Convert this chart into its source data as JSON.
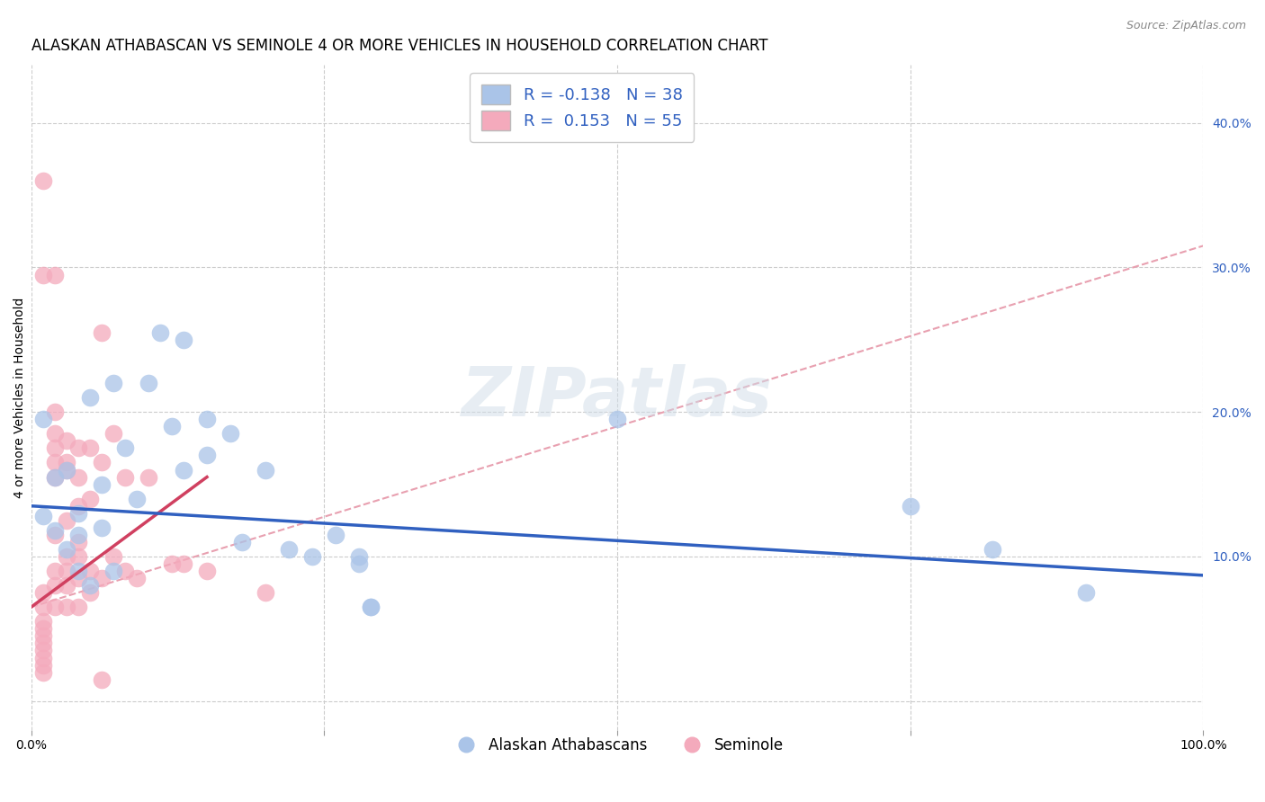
{
  "title": "ALASKAN ATHABASCAN VS SEMINOLE 4 OR MORE VEHICLES IN HOUSEHOLD CORRELATION CHART",
  "source": "Source: ZipAtlas.com",
  "ylabel": "4 or more Vehicles in Household",
  "right_ytick_labels": [
    "",
    "10.0%",
    "20.0%",
    "30.0%",
    "40.0%"
  ],
  "right_yticks": [
    0.0,
    0.1,
    0.2,
    0.3,
    0.4
  ],
  "xlim": [
    0.0,
    1.0
  ],
  "ylim": [
    -0.02,
    0.44
  ],
  "legend_r_blue": "R = -0.138",
  "legend_n_blue": "N = 38",
  "legend_r_pink": "R =  0.153",
  "legend_n_pink": "N = 55",
  "blue_scatter": [
    [
      0.01,
      0.195
    ],
    [
      0.01,
      0.128
    ],
    [
      0.02,
      0.118
    ],
    [
      0.02,
      0.155
    ],
    [
      0.03,
      0.16
    ],
    [
      0.03,
      0.105
    ],
    [
      0.04,
      0.115
    ],
    [
      0.04,
      0.09
    ],
    [
      0.04,
      0.13
    ],
    [
      0.05,
      0.08
    ],
    [
      0.05,
      0.21
    ],
    [
      0.06,
      0.15
    ],
    [
      0.06,
      0.12
    ],
    [
      0.07,
      0.09
    ],
    [
      0.07,
      0.22
    ],
    [
      0.08,
      0.175
    ],
    [
      0.09,
      0.14
    ],
    [
      0.1,
      0.22
    ],
    [
      0.11,
      0.255
    ],
    [
      0.12,
      0.19
    ],
    [
      0.13,
      0.25
    ],
    [
      0.13,
      0.16
    ],
    [
      0.15,
      0.195
    ],
    [
      0.15,
      0.17
    ],
    [
      0.17,
      0.185
    ],
    [
      0.18,
      0.11
    ],
    [
      0.2,
      0.16
    ],
    [
      0.22,
      0.105
    ],
    [
      0.24,
      0.1
    ],
    [
      0.26,
      0.115
    ],
    [
      0.28,
      0.095
    ],
    [
      0.28,
      0.1
    ],
    [
      0.29,
      0.065
    ],
    [
      0.29,
      0.065
    ],
    [
      0.5,
      0.195
    ],
    [
      0.75,
      0.135
    ],
    [
      0.82,
      0.105
    ],
    [
      0.9,
      0.075
    ]
  ],
  "pink_scatter": [
    [
      0.01,
      0.36
    ],
    [
      0.01,
      0.295
    ],
    [
      0.01,
      0.075
    ],
    [
      0.01,
      0.065
    ],
    [
      0.01,
      0.055
    ],
    [
      0.01,
      0.05
    ],
    [
      0.01,
      0.045
    ],
    [
      0.01,
      0.04
    ],
    [
      0.01,
      0.035
    ],
    [
      0.01,
      0.03
    ],
    [
      0.01,
      0.025
    ],
    [
      0.01,
      0.02
    ],
    [
      0.02,
      0.295
    ],
    [
      0.02,
      0.2
    ],
    [
      0.02,
      0.185
    ],
    [
      0.02,
      0.175
    ],
    [
      0.02,
      0.165
    ],
    [
      0.02,
      0.155
    ],
    [
      0.02,
      0.115
    ],
    [
      0.02,
      0.09
    ],
    [
      0.02,
      0.08
    ],
    [
      0.02,
      0.065
    ],
    [
      0.03,
      0.18
    ],
    [
      0.03,
      0.165
    ],
    [
      0.03,
      0.16
    ],
    [
      0.03,
      0.125
    ],
    [
      0.03,
      0.1
    ],
    [
      0.03,
      0.09
    ],
    [
      0.03,
      0.08
    ],
    [
      0.03,
      0.065
    ],
    [
      0.04,
      0.175
    ],
    [
      0.04,
      0.155
    ],
    [
      0.04,
      0.135
    ],
    [
      0.04,
      0.11
    ],
    [
      0.04,
      0.1
    ],
    [
      0.04,
      0.085
    ],
    [
      0.04,
      0.065
    ],
    [
      0.05,
      0.175
    ],
    [
      0.05,
      0.14
    ],
    [
      0.05,
      0.09
    ],
    [
      0.05,
      0.075
    ],
    [
      0.06,
      0.255
    ],
    [
      0.06,
      0.165
    ],
    [
      0.06,
      0.085
    ],
    [
      0.06,
      0.015
    ],
    [
      0.07,
      0.185
    ],
    [
      0.07,
      0.1
    ],
    [
      0.08,
      0.155
    ],
    [
      0.08,
      0.09
    ],
    [
      0.09,
      0.085
    ],
    [
      0.1,
      0.155
    ],
    [
      0.12,
      0.095
    ],
    [
      0.13,
      0.095
    ],
    [
      0.15,
      0.09
    ],
    [
      0.2,
      0.075
    ]
  ],
  "blue_color": "#aac4e8",
  "pink_color": "#f4aabc",
  "blue_line_color": "#3060c0",
  "pink_solid_color": "#d04060",
  "pink_dashed_color": "#e8a0b0",
  "blue_trendline": [
    0.0,
    0.135,
    1.0,
    0.087
  ],
  "pink_solid_trendline": [
    0.0,
    0.065,
    0.15,
    0.155
  ],
  "pink_dashed_trendline": [
    0.0,
    0.065,
    1.0,
    0.315
  ],
  "grid_color": "#cccccc",
  "background_color": "#ffffff",
  "title_fontsize": 12,
  "axis_label_fontsize": 10,
  "tick_fontsize": 10
}
